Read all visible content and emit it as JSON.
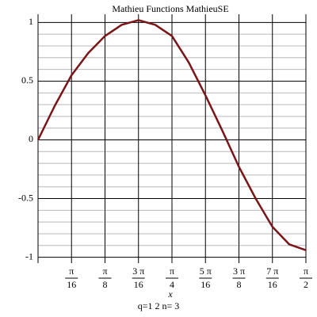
{
  "chart_data": {
    "type": "line",
    "title": "Mathieu Functions   MathieuSE",
    "xlabel": "x",
    "subtitle": "q=1   2 n= 3",
    "x": [
      0,
      0.0982,
      0.1963,
      0.2945,
      0.3927,
      0.4909,
      0.589,
      0.6872,
      0.7854,
      0.8836,
      0.9817,
      1.0799,
      1.1781,
      1.2763,
      1.3744,
      1.4726,
      1.5708
    ],
    "series": [
      {
        "name": "MathieuSE",
        "color": "#7a1518",
        "values": [
          0,
          0.29,
          0.55,
          0.74,
          0.885,
          0.98,
          1.02,
          0.98,
          0.885,
          0.66,
          0.38,
          0.08,
          -0.23,
          -0.5,
          -0.74,
          -0.89,
          -0.94
        ]
      }
    ],
    "xlim": [
      0,
      1.5708
    ],
    "ylim": [
      -1.05,
      1.07
    ],
    "xticks": [
      {
        "value": 0.1963,
        "numerator": "π",
        "denominator": "16"
      },
      {
        "value": 0.3927,
        "numerator": "π",
        "denominator": "8"
      },
      {
        "value": 0.589,
        "numerator": "3 π",
        "denominator": "16"
      },
      {
        "value": 0.7854,
        "numerator": "π",
        "denominator": "4"
      },
      {
        "value": 0.9817,
        "numerator": "5 π",
        "denominator": "16"
      },
      {
        "value": 1.1781,
        "numerator": "3 π",
        "denominator": "8"
      },
      {
        "value": 1.3744,
        "numerator": "7 π",
        "denominator": "16"
      },
      {
        "value": 1.5708,
        "numerator": "π",
        "denominator": "2"
      }
    ],
    "yticks": [
      1,
      0.5,
      0,
      -0.5,
      -1
    ],
    "minor_yticks": [
      -0.9,
      -0.8,
      -0.7,
      -0.6,
      -0.4,
      -0.3,
      -0.2,
      -0.1,
      0.1,
      0.2,
      0.3,
      0.4,
      0.6,
      0.7,
      0.8,
      0.9
    ],
    "grid": true
  }
}
